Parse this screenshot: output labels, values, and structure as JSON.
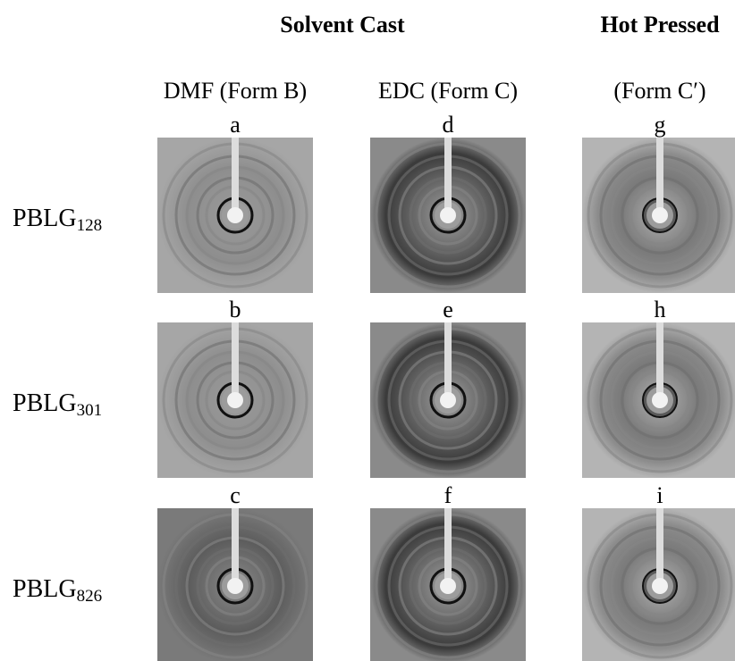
{
  "headers": [
    "Solvent Cast",
    "Hot Pressed"
  ],
  "columns": [
    "DMF (Form B)",
    "EDC (Form C)",
    "(Form C′)"
  ],
  "panels": [
    [
      "a",
      "d",
      "g"
    ],
    [
      "b",
      "e",
      "h"
    ],
    [
      "c",
      "f",
      "i"
    ]
  ],
  "rows": [
    {
      "label": "PBLG",
      "sub": "128"
    },
    {
      "label": "PBLG",
      "sub": "301"
    },
    {
      "label": "PBLG",
      "sub": "826"
    }
  ]
}
